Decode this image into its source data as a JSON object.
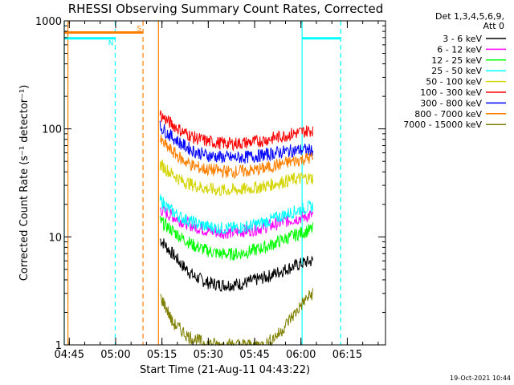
{
  "chart_data": {
    "type": "line",
    "title": "RHESSI Observing Summary Count Rates, Corrected",
    "xlabel": "Start Time (21-Aug-11 04:43:22)",
    "ylabel": "Corrected Count Rate (s⁻¹ detector⁻¹)",
    "x_unit": "minutes after 04:43:22 UT",
    "xlim": [
      0,
      104
    ],
    "ylim": [
      1,
      1000
    ],
    "yscale": "log",
    "x_ticks": [
      {
        "value": 1.63,
        "label": "04:45"
      },
      {
        "value": 16.63,
        "label": "05:00"
      },
      {
        "value": 31.63,
        "label": "05:15"
      },
      {
        "value": 46.63,
        "label": "05:30"
      },
      {
        "value": 61.63,
        "label": "05:45"
      },
      {
        "value": 76.63,
        "label": "06:00"
      },
      {
        "value": 91.63,
        "label": "06:15"
      }
    ],
    "y_ticks": [
      {
        "value": 1,
        "label": "1"
      },
      {
        "value": 10,
        "label": "10"
      },
      {
        "value": 100,
        "label": "100"
      },
      {
        "value": 1000,
        "label": "1000"
      }
    ],
    "legend_header": [
      "Det 1,3,4,5,6,9,",
      "Att 0"
    ],
    "legend_position": "right",
    "series": [
      {
        "name": "3 - 6 keV",
        "color": "#000000",
        "x": [
          31,
          34,
          38,
          42,
          46,
          50,
          54,
          58,
          62,
          66,
          70,
          74,
          78,
          80.5
        ],
        "y": [
          9.5,
          7.5,
          5.5,
          4.3,
          3.8,
          3.6,
          3.6,
          3.7,
          4.0,
          4.3,
          4.8,
          5.3,
          5.8,
          6.0
        ]
      },
      {
        "name": "6 - 12 keV",
        "color": "#ff00ff",
        "x": [
          31,
          34,
          38,
          42,
          46,
          50,
          54,
          58,
          62,
          66,
          70,
          74,
          78,
          80.5
        ],
        "y": [
          18,
          16,
          14,
          12.5,
          11.5,
          11,
          11,
          11.3,
          11.8,
          12.5,
          13.5,
          14.5,
          15.5,
          16
        ]
      },
      {
        "name": "12 - 25 keV",
        "color": "#00ff00",
        "x": [
          31,
          34,
          38,
          42,
          46,
          50,
          54,
          58,
          62,
          66,
          70,
          74,
          78,
          80.5
        ],
        "y": [
          14,
          12,
          9.8,
          8.3,
          7.5,
          7.0,
          6.9,
          7.1,
          7.6,
          8.2,
          9.2,
          10.2,
          11.2,
          11.8
        ]
      },
      {
        "name": "25 - 50 keV",
        "color": "#00ffff",
        "x": [
          31,
          34,
          38,
          42,
          46,
          50,
          54,
          58,
          62,
          66,
          70,
          74,
          78,
          80.5
        ],
        "y": [
          22,
          18,
          15,
          13.5,
          12.5,
          12,
          12,
          12.3,
          13,
          14,
          15.5,
          17,
          18.5,
          19
        ]
      },
      {
        "name": "50 - 100 keV",
        "color": "#d4d400",
        "x": [
          31,
          34,
          38,
          42,
          46,
          50,
          54,
          58,
          62,
          66,
          70,
          74,
          78,
          80.5
        ],
        "y": [
          47,
          40,
          33,
          30,
          28,
          27,
          27,
          27.5,
          28.5,
          30,
          32,
          34,
          35,
          35
        ]
      },
      {
        "name": "100 - 300 keV",
        "color": "#ff0000",
        "x": [
          31,
          34,
          38,
          42,
          46,
          50,
          54,
          58,
          62,
          66,
          70,
          74,
          78,
          80.5
        ],
        "y": [
          135,
          115,
          95,
          83,
          77,
          74,
          73,
          74,
          76,
          80,
          85,
          90,
          95,
          98
        ]
      },
      {
        "name": "300 - 800 keV",
        "color": "#0000ff",
        "x": [
          31,
          34,
          38,
          42,
          46,
          50,
          54,
          58,
          62,
          66,
          70,
          74,
          78,
          80.5
        ],
        "y": [
          105,
          88,
          72,
          62,
          57,
          55,
          54,
          54.5,
          56,
          58,
          61,
          63,
          64,
          63
        ]
      },
      {
        "name": "800 - 7000 keV",
        "color": "#ff8000",
        "x": [
          31,
          34,
          38,
          42,
          46,
          50,
          54,
          58,
          62,
          66,
          70,
          74,
          78,
          80.5
        ],
        "y": [
          78,
          65,
          52,
          45,
          42,
          41,
          40,
          40.5,
          41.5,
          44,
          47,
          50,
          53,
          54
        ]
      },
      {
        "name": "7000 - 15000 keV",
        "color": "#808000",
        "x": [
          31,
          35,
          40,
          45,
          50,
          55,
          60,
          65,
          70,
          75,
          78,
          80.5
        ],
        "y": [
          2.8,
          1.6,
          1.2,
          1.05,
          1.0,
          1.0,
          1.0,
          1.0,
          1.3,
          2.0,
          2.6,
          3.0
        ]
      }
    ],
    "flags": [
      {
        "label": "S",
        "color": "#ff8000",
        "x": [
          0,
          25.5
        ],
        "y": 780
      },
      {
        "label": "N",
        "color": "#00ffff",
        "x": [
          0,
          16.5
        ],
        "y": 690
      },
      {
        "label": "",
        "color": "#00ffff",
        "x": [
          77,
          89.5
        ],
        "y": 690
      }
    ],
    "vlines": [
      {
        "x": 0,
        "color": "#00ffff",
        "style": "solid"
      },
      {
        "x": 1.2,
        "color": "#ff8000",
        "style": "solid"
      },
      {
        "x": 16.5,
        "color": "#00ffff",
        "style": "dashed"
      },
      {
        "x": 25.5,
        "color": "#ff8000",
        "style": "dashed"
      },
      {
        "x": 30.5,
        "color": "#ff8000",
        "style": "solid"
      },
      {
        "x": 77,
        "color": "#00ffff",
        "style": "solid"
      },
      {
        "x": 89.5,
        "color": "#00ffff",
        "style": "dashed"
      }
    ]
  },
  "footer": {
    "timestamp": "19-Oct-2021 10:44"
  }
}
